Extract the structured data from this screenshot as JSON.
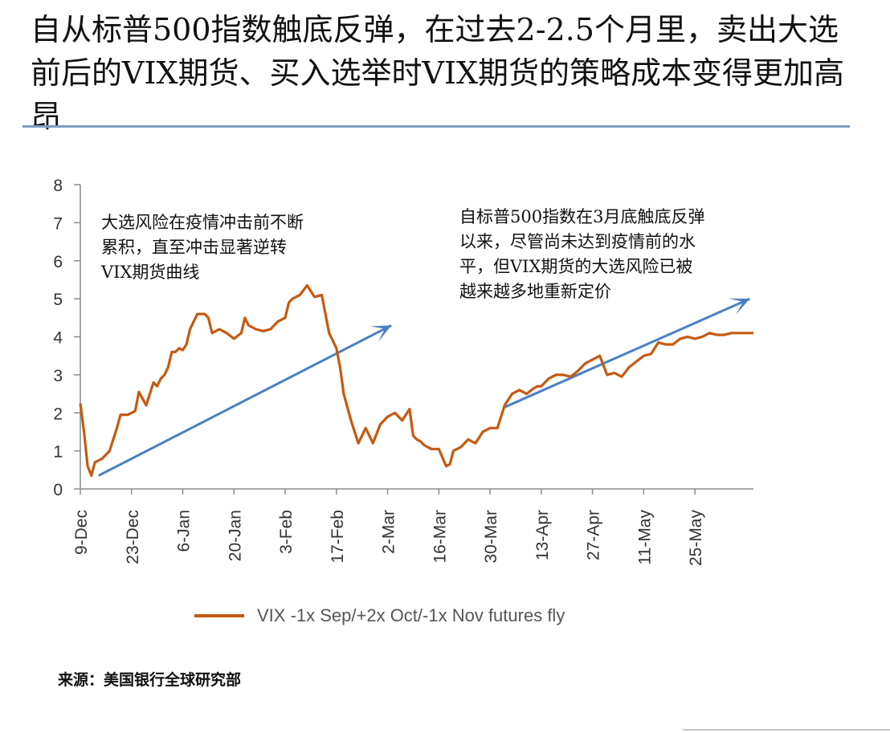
{
  "title": "自从标普500指数触底反弹，在过去2-2.5个月里，卖出大选前后的VIX期货、买入选举时VIX期货的策略成本变得更加高昂",
  "source": "来源：美国银行全球研究部",
  "colors": {
    "series": "#c55a11",
    "arrow": "#4a7fc8",
    "axis": "#8c8c8c",
    "rule": "#7f9cc0"
  },
  "chart_data": {
    "type": "line",
    "ylim": [
      0,
      8
    ],
    "yticks": [
      "0",
      "1",
      "2",
      "3",
      "4",
      "5",
      "6",
      "7",
      "8"
    ],
    "xticks": [
      "9-Dec",
      "23-Dec",
      "6-Jan",
      "20-Jan",
      "3-Feb",
      "17-Feb",
      "2-Mar",
      "16-Mar",
      "30-Mar",
      "13-Apr",
      "27-Apr",
      "11-May",
      "25-May"
    ],
    "xlim_days": [
      0,
      184
    ],
    "grid": false,
    "legend_position": "bottom",
    "series": [
      {
        "name": "VIX -1x Sep/+2x Oct/-1x Nov futures fly",
        "x_days": [
          0,
          1,
          2,
          3,
          4,
          5,
          6,
          7,
          8,
          9,
          10,
          11,
          12,
          13,
          14,
          15,
          16,
          18,
          20,
          21,
          22,
          23,
          24,
          25,
          26,
          27,
          28,
          29,
          30,
          32,
          34,
          35,
          36,
          38,
          40,
          42,
          44,
          45,
          46,
          48,
          50,
          52,
          54,
          56,
          57,
          58,
          60,
          62,
          64,
          66,
          68,
          70,
          71,
          72,
          74,
          76,
          78,
          80,
          82,
          84,
          86,
          88,
          89,
          90,
          91,
          92,
          93,
          94,
          95,
          96,
          98,
          100,
          101,
          102,
          104,
          106,
          108,
          110,
          111,
          112,
          114,
          116,
          118,
          119,
          120,
          122,
          124,
          125,
          126,
          128,
          130,
          132,
          134,
          136,
          138,
          140,
          142,
          144,
          146,
          148,
          150,
          152,
          154,
          156,
          158,
          160,
          162,
          164,
          166,
          168,
          170,
          172,
          174,
          176,
          178,
          180,
          182,
          184
        ],
        "y": [
          2.25,
          1.5,
          0.6,
          0.35,
          0.7,
          0.75,
          0.8,
          0.9,
          1.0,
          1.3,
          1.6,
          1.95,
          1.95,
          1.95,
          2.0,
          2.05,
          2.55,
          2.2,
          2.8,
          2.7,
          2.9,
          3.0,
          3.2,
          3.6,
          3.6,
          3.7,
          3.65,
          3.8,
          4.2,
          4.6,
          4.6,
          4.5,
          4.1,
          4.2,
          4.1,
          3.95,
          4.1,
          4.5,
          4.3,
          4.2,
          4.15,
          4.2,
          4.4,
          4.5,
          4.9,
          5.0,
          5.1,
          5.35,
          5.05,
          5.1,
          4.1,
          3.7,
          3.2,
          2.5,
          1.8,
          1.2,
          1.6,
          1.2,
          1.7,
          1.9,
          2.0,
          1.8,
          1.95,
          2.1,
          1.4,
          1.3,
          1.25,
          1.15,
          1.1,
          1.05,
          1.05,
          0.6,
          0.65,
          1.0,
          1.1,
          1.3,
          1.2,
          1.5,
          1.55,
          1.6,
          1.6,
          2.2,
          2.5,
          2.55,
          2.6,
          2.5,
          2.65,
          2.7,
          2.7,
          2.9,
          3.0,
          3.0,
          2.95,
          3.1,
          3.3,
          3.4,
          3.5,
          3.0,
          3.05,
          2.95,
          3.2,
          3.35,
          3.5,
          3.55,
          3.85,
          3.8,
          3.8,
          3.95,
          4.0,
          3.95,
          4.0,
          4.1,
          4.05,
          4.05,
          4.1,
          4.1,
          4.1,
          4.1
        ]
      }
    ],
    "annotations": [
      "大选风险在疫情冲击前不断累积，直至冲击显著逆转VIX期货曲线",
      "自标普500指数在3月底触底反弹以来，尽管尚未达到疫情前的水平，但VIX期货的大选风险已被越来越多地重新定价"
    ],
    "arrows": [
      {
        "from": [
          5,
          0.35
        ],
        "to": [
          85,
          4.3
        ]
      },
      {
        "from": [
          116,
          2.15
        ],
        "to": [
          183,
          5.0
        ]
      }
    ]
  }
}
